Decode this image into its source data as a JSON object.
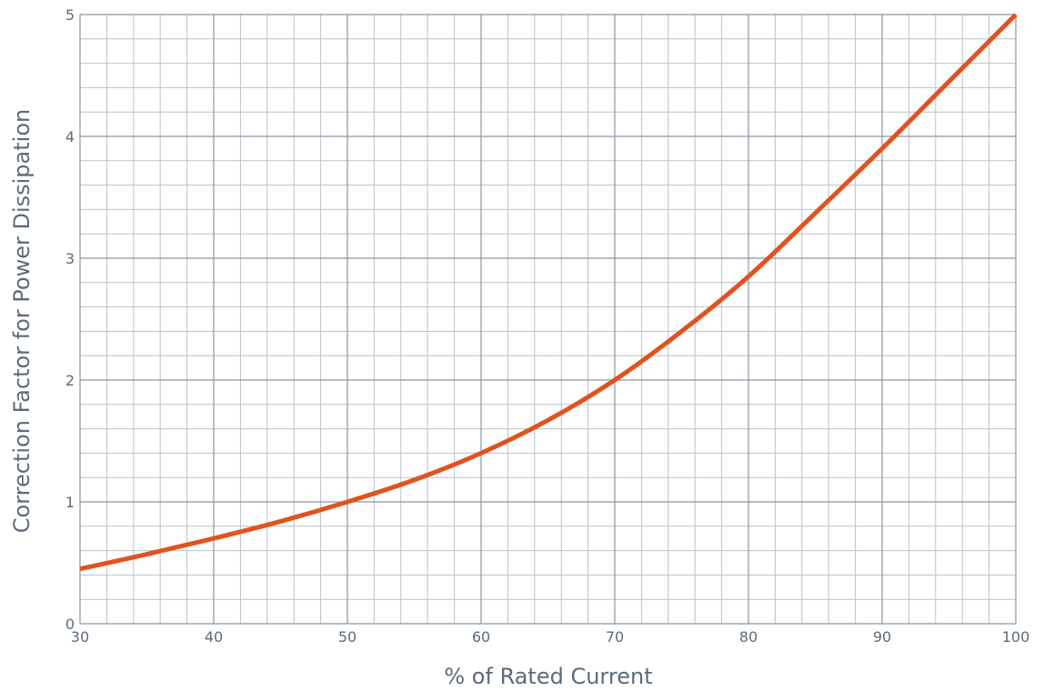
{
  "chart_data": {
    "type": "line",
    "title": "",
    "xlabel": "% of Rated Current",
    "ylabel": "Correction Factor for Power Dissipation",
    "xlim": [
      30,
      100
    ],
    "ylim": [
      0,
      5
    ],
    "x_ticks": [
      30,
      40,
      50,
      60,
      70,
      80,
      90,
      100
    ],
    "y_ticks": [
      0,
      1,
      2,
      3,
      4,
      5
    ],
    "x_tick_labels": [
      "30",
      "40",
      "50",
      "60",
      "70",
      "80",
      "90",
      "100"
    ],
    "y_tick_labels": [
      "0",
      "1",
      "2",
      "3",
      "4",
      "5"
    ],
    "grid": true,
    "minor_grid": true,
    "series": [
      {
        "color": "#e0531f",
        "x": [
          30,
          35,
          40,
          45,
          50,
          55,
          60,
          65,
          70,
          75,
          80,
          85,
          90,
          95,
          100
        ],
        "y": [
          0.45,
          0.57,
          0.7,
          0.84,
          1.0,
          1.18,
          1.4,
          1.67,
          2.0,
          2.4,
          2.85,
          3.37,
          3.9,
          4.45,
          5.0
        ]
      }
    ]
  },
  "colors": {
    "line": "#e0531f",
    "major_grid": "#8a96a2",
    "minor_grid": "#b9c2ca",
    "text": "#5c6b7a"
  }
}
